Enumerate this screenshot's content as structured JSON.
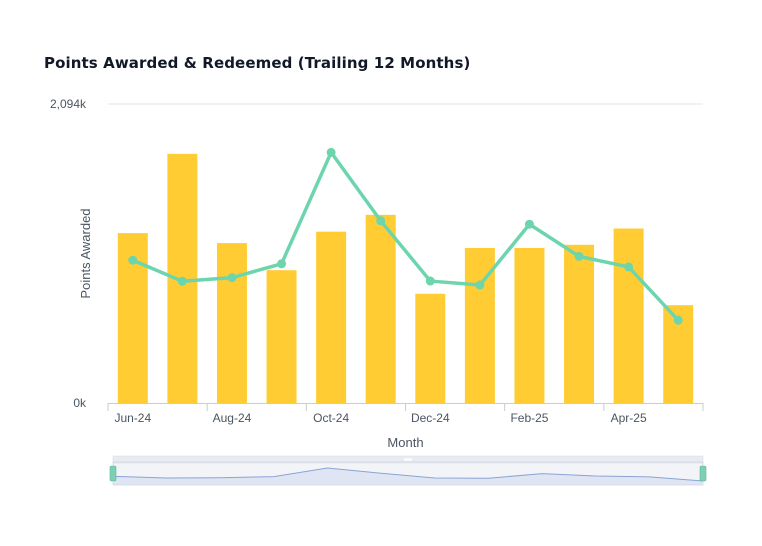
{
  "title": "Points Awarded & Redeemed (Trailing 12 Months)",
  "chart_data": {
    "type": "bar",
    "title": "Points Awarded & Redeemed (Trailing 12 Months)",
    "xlabel": "Month",
    "ylabel": "Points Awarded",
    "ylim": [
      0,
      2094
    ],
    "y_unit_suffix": "k",
    "y_ticks": [
      {
        "value": 0,
        "label": "0k"
      },
      {
        "value": 2094,
        "label": "2,094k"
      }
    ],
    "x_tick_labels": [
      "Jun-24",
      "",
      "Aug-24",
      "",
      "Oct-24",
      "",
      "Dec-24",
      "",
      "Feb-25",
      "",
      "Apr-25",
      ""
    ],
    "categories": [
      "Jun-24",
      "Jul-24",
      "Aug-24",
      "Sep-24",
      "Oct-24",
      "Nov-24",
      "Dec-24",
      "Jan-25",
      "Feb-25",
      "Mar-25",
      "Apr-25",
      "May-25"
    ],
    "series": [
      {
        "type": "bar",
        "color": "#ffcd33",
        "values": [
          1190,
          1745,
          1120,
          930,
          1200,
          1318,
          765,
          1086,
          1086,
          1108,
          1222,
          685
        ]
      },
      {
        "type": "line",
        "color": "#6dd5ad",
        "values": [
          1000,
          853,
          878,
          975,
          1755,
          1276,
          854,
          826,
          1252,
          1027,
          953,
          580
        ]
      }
    ],
    "grid": "horizontal",
    "legend": "none",
    "navigator": true
  },
  "colors": {
    "bar": "#ffcd33",
    "line": "#6dd5ad",
    "navigator_fill": "#dfe5f2",
    "navigator_line": "#8aa4d6"
  }
}
